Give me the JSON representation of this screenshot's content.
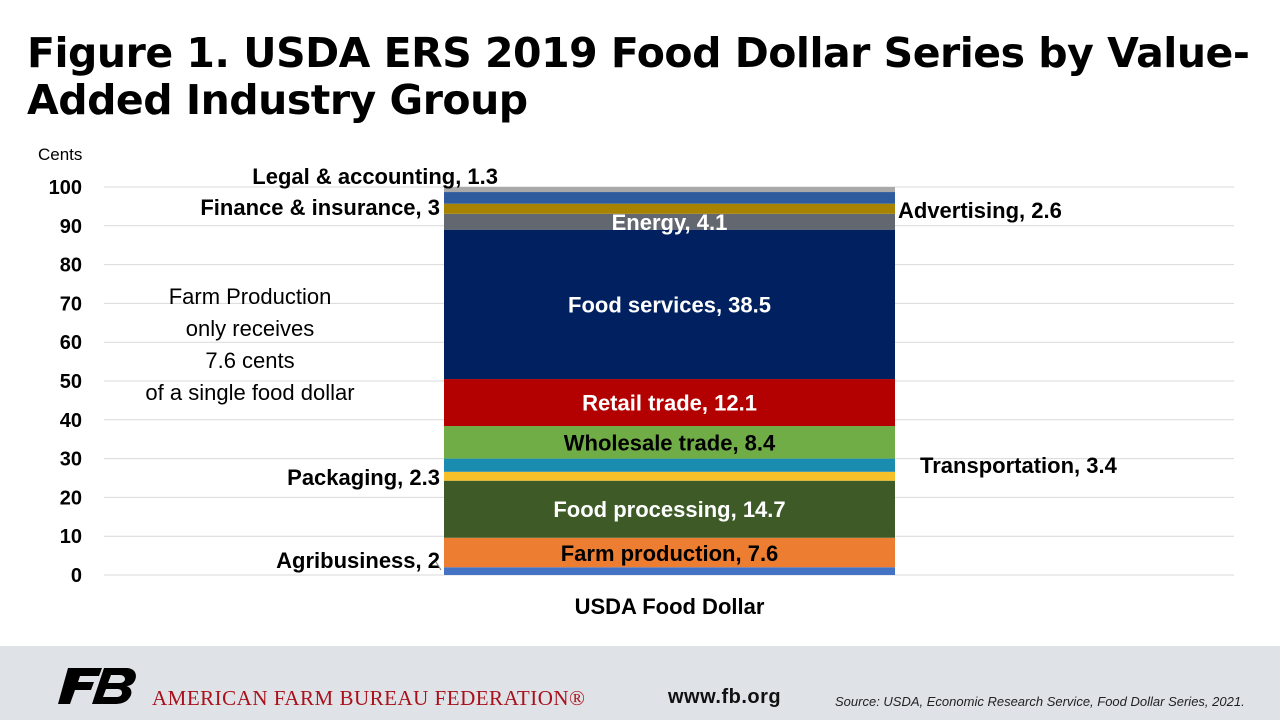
{
  "title": "Figure 1. USDA ERS 2019 Food Dollar Series by Value-Added Industry Group",
  "footer": {
    "org_name": "AMERICAN FARM BUREAU FEDERATION®",
    "website": "www.fb.org",
    "source": "Source: USDA, Economic Research Service, Food Dollar Series, 2021.",
    "logo_icon": "fb-logo-icon",
    "logo_color": "#000000"
  },
  "chart_data": {
    "type": "stacked-bar",
    "ylabel": "Cents",
    "ylim": [
      0,
      100
    ],
    "yticks": [
      0,
      10,
      20,
      30,
      40,
      50,
      60,
      70,
      80,
      90,
      100
    ],
    "categories": [
      "USDA Food Dollar"
    ],
    "grid": true,
    "annotation": "Farm Production\nonly receives\n7.6 cents\nof a single food dollar",
    "series": [
      {
        "name": "Agribusiness",
        "value": 2,
        "label": "Agribusiness, 2",
        "color": "#4472c4",
        "label_pos": "left"
      },
      {
        "name": "Farm production",
        "value": 7.6,
        "label": "Farm production, 7.6",
        "color": "#ed7d31",
        "label_pos": "inside"
      },
      {
        "name": "Food processing",
        "value": 14.7,
        "label": "Food processing, 14.7",
        "color": "#3d5a27",
        "label_pos": "inside"
      },
      {
        "name": "Packaging",
        "value": 2.3,
        "label": "Packaging, 2.3",
        "color": "#f5c02a",
        "label_pos": "left"
      },
      {
        "name": "Transportation",
        "value": 3.4,
        "label": "Transportation, 3.4",
        "color": "#1a8cb0",
        "label_pos": "right"
      },
      {
        "name": "Wholesale trade",
        "value": 8.4,
        "label": "Wholesale trade, 8.4",
        "color": "#70ad47",
        "label_pos": "inside"
      },
      {
        "name": "Retail trade",
        "value": 12.1,
        "label": "Retail trade, 12.1",
        "color": "#b30000",
        "label_pos": "inside"
      },
      {
        "name": "Food services",
        "value": 38.5,
        "label": "Food services, 38.5",
        "color": "#002060",
        "label_pos": "inside"
      },
      {
        "name": "Energy",
        "value": 4.1,
        "label": "Energy, 4.1",
        "color": "#636870",
        "label_pos": "inside"
      },
      {
        "name": "Advertising",
        "value": 2.6,
        "label": "Advertising, 2.6",
        "color": "#a88300",
        "label_pos": "right"
      },
      {
        "name": "Finance & insurance",
        "value": 3,
        "label": "Finance & insurance, 3",
        "color": "#2e5b9e",
        "label_pos": "left"
      },
      {
        "name": "Legal & accounting",
        "value": 1.3,
        "label": "Legal & accounting, 1.3",
        "color": "#a9a9a9",
        "label_pos": "left"
      }
    ]
  }
}
